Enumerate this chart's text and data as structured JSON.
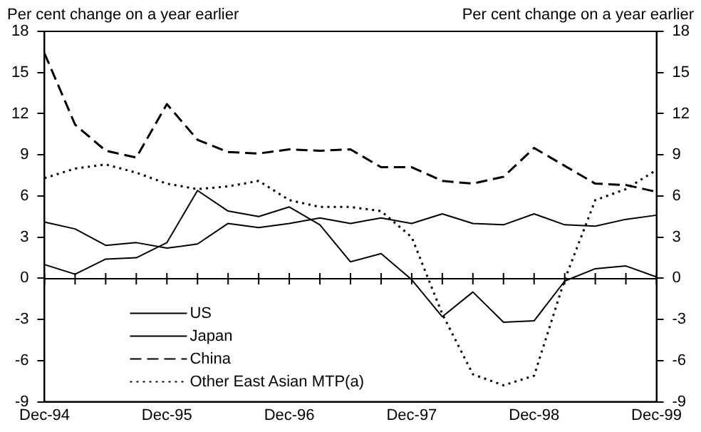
{
  "chart_data": {
    "type": "line",
    "ylabel": "Per cent change on a year earlier",
    "y2label": "Per cent change on a year earlier",
    "categories": [
      "Dec-94",
      null,
      null,
      null,
      "Dec-95",
      null,
      null,
      null,
      "Dec-96",
      null,
      null,
      null,
      "Dec-97",
      null,
      null,
      null,
      "Dec-98",
      null,
      null,
      null,
      "Dec-99"
    ],
    "series": [
      {
        "name": "US",
        "color": "#000000",
        "line_style": "solid",
        "values": [
          4.1,
          3.6,
          2.4,
          2.6,
          2.2,
          2.5,
          4.0,
          3.7,
          4.0,
          4.4,
          4.0,
          4.4,
          4.0,
          4.7,
          4.0,
          3.9,
          4.7,
          3.9,
          3.8,
          4.3,
          4.6
        ]
      },
      {
        "name": "Japan",
        "color": "#000000",
        "line_style": "solid",
        "values": [
          1.0,
          0.3,
          1.4,
          1.5,
          2.6,
          6.4,
          4.9,
          4.5,
          5.2,
          3.9,
          1.2,
          1.8,
          -0.1,
          -2.8,
          -1.0,
          -3.2,
          -3.1,
          -0.2,
          0.7,
          0.9,
          0.1
        ]
      },
      {
        "name": "China",
        "color": "#000000",
        "line_style": "dashed",
        "values": [
          16.4,
          11.2,
          9.3,
          8.8,
          12.7,
          10.1,
          9.2,
          9.1,
          9.4,
          9.3,
          9.4,
          8.1,
          8.1,
          7.1,
          6.9,
          7.4,
          9.5,
          8.2,
          6.9,
          6.8,
          6.3
        ]
      },
      {
        "name": "Other East Asian MTP(a)",
        "color": "#000000",
        "line_style": "dotted",
        "values": [
          7.3,
          8.0,
          8.3,
          7.7,
          6.9,
          6.5,
          6.7,
          7.1,
          5.7,
          5.2,
          5.2,
          4.9,
          3.0,
          -2.6,
          -7.0,
          -7.8,
          -7.1,
          -0.1,
          5.7,
          6.5,
          7.9
        ]
      }
    ],
    "ylim": [
      -9,
      18
    ],
    "yticks": [
      -9,
      -6,
      -3,
      0,
      3,
      6,
      9,
      12,
      15,
      18
    ],
    "y2lim": [
      -9,
      18
    ],
    "y2ticks": [
      -9,
      -6,
      -3,
      0,
      3,
      6,
      9,
      12,
      15,
      18
    ],
    "legend": "bottom left",
    "marker": "none"
  }
}
